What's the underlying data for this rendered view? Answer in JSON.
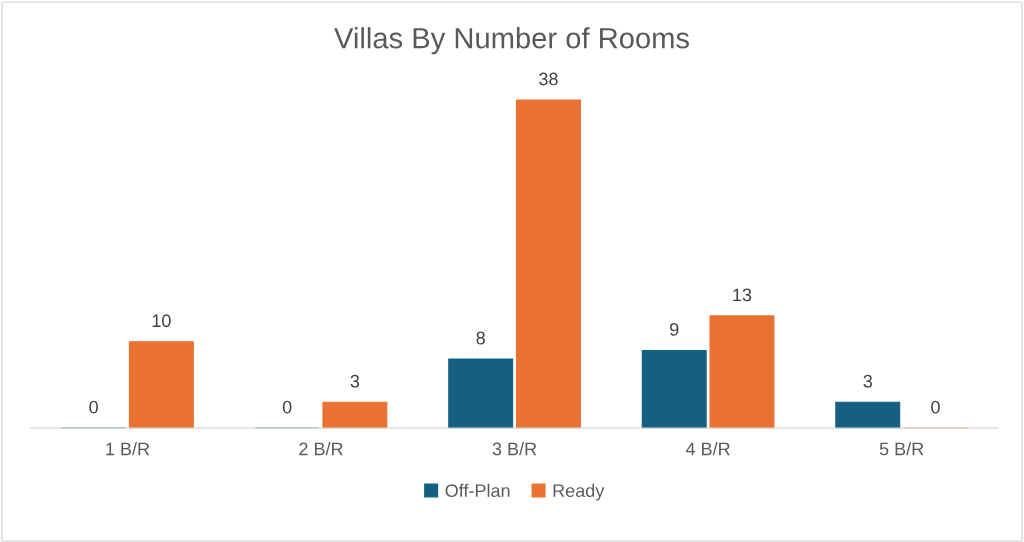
{
  "chart_data": {
    "type": "bar",
    "title": "Villas By Number of Rooms",
    "categories": [
      "1 B/R",
      "2 B/R",
      "3 B/R",
      "4 B/R",
      "5 B/R"
    ],
    "series": [
      {
        "name": "Off-Plan",
        "color": "#156082",
        "values": [
          0,
          0,
          8,
          9,
          3
        ]
      },
      {
        "name": "Ready",
        "color": "#e97132",
        "values": [
          10,
          3,
          38,
          13,
          0
        ]
      }
    ],
    "data_labels": true,
    "legend": "bottom",
    "tick_labels": "x"
  }
}
